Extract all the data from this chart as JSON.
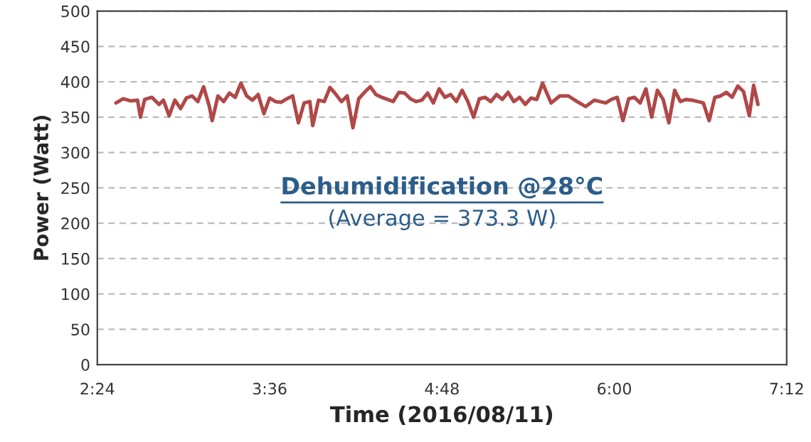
{
  "chart_data": {
    "type": "line",
    "xlabel": "Time (2016/08/11)",
    "ylabel": "Power (Watt)",
    "annotations": [
      "Dehumidification @28°C",
      "(Average = 373.3 W)"
    ],
    "xlim": [
      2.4,
      7.2
    ],
    "xticks": [
      {
        "value": 2.4,
        "label": "2:24"
      },
      {
        "value": 3.6,
        "label": "3:36"
      },
      {
        "value": 4.8,
        "label": "4:48"
      },
      {
        "value": 6.0,
        "label": "6:00"
      },
      {
        "value": 7.2,
        "label": "7:12"
      }
    ],
    "ylim": [
      0,
      500
    ],
    "yticks": [
      0,
      50,
      100,
      150,
      200,
      250,
      300,
      350,
      400,
      450,
      500
    ],
    "grid": "y",
    "marker": "none",
    "line_style": "solid",
    "series": [
      {
        "color": "#b04848",
        "x": [
          2.53,
          2.58,
          2.63,
          2.68,
          2.7,
          2.73,
          2.78,
          2.83,
          2.86,
          2.9,
          2.94,
          2.98,
          3.02,
          3.06,
          3.1,
          3.14,
          3.18,
          3.2,
          3.24,
          3.28,
          3.32,
          3.36,
          3.4,
          3.44,
          3.48,
          3.52,
          3.56,
          3.6,
          3.64,
          3.68,
          3.72,
          3.76,
          3.8,
          3.84,
          3.88,
          3.9,
          3.94,
          3.98,
          4.02,
          4.05,
          4.1,
          4.14,
          4.18,
          4.22,
          4.26,
          4.3,
          4.34,
          4.38,
          4.42,
          4.46,
          4.5,
          4.54,
          4.58,
          4.62,
          4.66,
          4.7,
          4.74,
          4.78,
          4.82,
          4.86,
          4.9,
          4.94,
          4.98,
          5.02,
          5.06,
          5.1,
          5.14,
          5.18,
          5.22,
          5.26,
          5.3,
          5.34,
          5.38,
          5.42,
          5.46,
          5.5,
          5.56,
          5.62,
          5.68,
          5.74,
          5.8,
          5.86,
          5.9,
          5.94,
          5.98,
          6.02,
          6.06,
          6.1,
          6.14,
          6.18,
          6.22,
          6.26,
          6.3,
          6.34,
          6.38,
          6.42,
          6.46,
          6.5,
          6.54,
          6.58,
          6.62,
          6.66,
          6.7,
          6.74,
          6.78,
          6.82,
          6.86,
          6.9,
          6.94,
          6.97,
          7.0
        ],
        "values": [
          370,
          376,
          373,
          374,
          350,
          375,
          378,
          368,
          374,
          352,
          374,
          362,
          377,
          380,
          372,
          393,
          365,
          345,
          380,
          372,
          384,
          378,
          398,
          380,
          374,
          382,
          355,
          377,
          372,
          371,
          376,
          380,
          342,
          370,
          372,
          338,
          374,
          372,
          392,
          385,
          372,
          380,
          335,
          376,
          385,
          393,
          382,
          378,
          375,
          372,
          385,
          384,
          376,
          372,
          374,
          384,
          370,
          390,
          378,
          382,
          372,
          388,
          372,
          350,
          376,
          378,
          372,
          382,
          375,
          385,
          372,
          378,
          368,
          377,
          375,
          398,
          370,
          380,
          380,
          372,
          365,
          374,
          372,
          370,
          375,
          378,
          345,
          376,
          378,
          370,
          390,
          350,
          388,
          375,
          342,
          388,
          372,
          375,
          374,
          372,
          370,
          345,
          378,
          380,
          385,
          378,
          394,
          386,
          352,
          395,
          368
        ]
      }
    ]
  }
}
